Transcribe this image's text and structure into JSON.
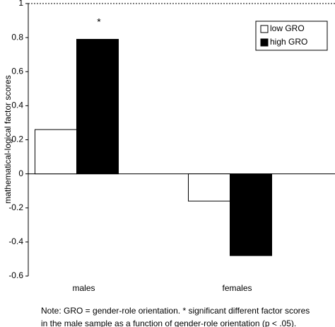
{
  "chart_data": {
    "type": "bar",
    "y_label": "mathematical-logical factor scores",
    "categories": [
      "males",
      "females"
    ],
    "series": [
      {
        "name": "low GRO",
        "color": "#ffffff",
        "values": [
          0.26,
          -0.16
        ]
      },
      {
        "name": "high GRO",
        "color": "#000000",
        "values": [
          0.79,
          -0.48
        ]
      }
    ],
    "annotations": [
      "*"
    ],
    "ylim": [
      -0.6,
      1
    ],
    "yticks": [
      -0.6,
      -0.4,
      -0.2,
      0,
      0.2,
      0.4,
      0.6,
      0.8,
      1
    ],
    "legend": "upper right",
    "note": [
      "Note: GRO = gender-role orientation. * significant different factor scores",
      "in the male sample as a function of gender-role orientation (p < .05)."
    ]
  }
}
